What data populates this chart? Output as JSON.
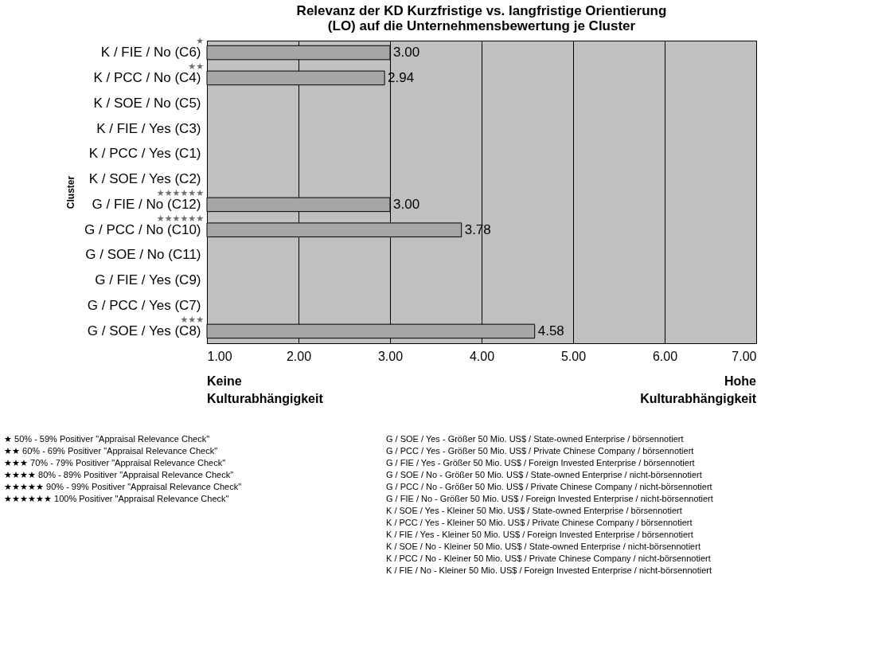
{
  "chart_data": {
    "type": "bar",
    "orientation": "horizontal",
    "title": "Relevanz der KD Kurzfristige vs. langfristige Orientierung\n(LO) auf die Unternehmensbewertung je Cluster",
    "ylabel": "Cluster",
    "categories": [
      "K / FIE / No (C6)",
      "K / PCC / No (C4)",
      "K / SOE / No (C5)",
      "K / FIE / Yes (C3)",
      "K / PCC / Yes (C1)",
      "K / SOE / Yes (C2)",
      "G / FIE / No (C12)",
      "G / PCC / No (C10)",
      "G / SOE / No (C11)",
      "G / FIE / Yes (C9)",
      "G / PCC / Yes (C7)",
      "G / SOE / Yes (C8)"
    ],
    "values": [
      3.0,
      2.94,
      null,
      null,
      null,
      null,
      3.0,
      3.78,
      null,
      null,
      null,
      4.58
    ],
    "value_labels": [
      "3.00",
      "2.94",
      null,
      null,
      null,
      null,
      "3.00",
      "3.78",
      null,
      null,
      null,
      "4.58"
    ],
    "color": "#a6a6a6",
    "xlim": [
      1,
      7
    ],
    "xticks": [
      {
        "value": 1,
        "label": "1.00"
      },
      {
        "value": 2,
        "label": "2.00"
      },
      {
        "value": 3,
        "label": "3.00"
      },
      {
        "value": 4,
        "label": "4.00"
      },
      {
        "value": 5,
        "label": "5.00"
      },
      {
        "value": 6,
        "label": "6.00"
      },
      {
        "value": 7,
        "label": "7.00"
      }
    ],
    "grid": "x",
    "annotations": [
      "★",
      "★★",
      "★★★★★★",
      "★★★★★★",
      "★★★",
      "Keine Kulturabhängigkeit",
      "Hohe Kulturabhängigkeit",
      "★ 50% - 59% Positiver \"Appraisal Relevance Check\"",
      "★★ 60% - 69% Positiver \"Appraisal Relevance Check\"",
      "★★★ 70% - 79% Positiver \"Appraisal Relevance Check\"",
      "★★★★ 80% - 89% Positiver \"Appraisal Relevance Check\"",
      "★★★★★ 90% - 99% Positiver \"Appraisal Relevance Check\"",
      "★★★★★★ 100% Positiver \"Appraisal Relevance Check\"",
      "G / SOE / Yes - Größer 50 Mio. US$ / State-owned Enterprise / börsennotiert",
      "G / PCC / Yes - Größer 50 Mio. US$ / Private Chinese Company / börsennotiert",
      "G / FIE / Yes - Größer 50 Mio. US$ / Foreign Invested Enterprise / börsennotiert",
      "G / SOE / No - Größer 50 Mio. US$ / State-owned Enterprise / nicht-börsennotiert",
      "G / PCC / No - Größer 50 Mio. US$ / Private Chinese Company / nicht-börsennotiert",
      "G / FIE / No - Größer 50 Mio. US$ / Foreign Invested Enterprise / nicht-börsennotiert",
      "K / SOE / Yes - Kleiner 50 Mio. US$ / State-owned Enterprise / börsennotiert",
      "K / PCC / Yes - Kleiner 50 Mio. US$ / Private Chinese Company / börsennotiert",
      "K / FIE / Yes - Kleiner 50 Mio. US$ / Foreign Invested Enterprise / börsennotiert",
      "K / SOE / No - Kleiner 50 Mio. US$ / State-owned Enterprise / nicht-börsennotiert",
      "K / PCC / No - Kleiner 50 Mio. US$ / Private Chinese Company / nicht-börsennotiert",
      "K / FIE / No - Kleiner 50 Mio. US$ / Foreign Invested Enterprise / nicht-börsennotiert"
    ]
  }
}
